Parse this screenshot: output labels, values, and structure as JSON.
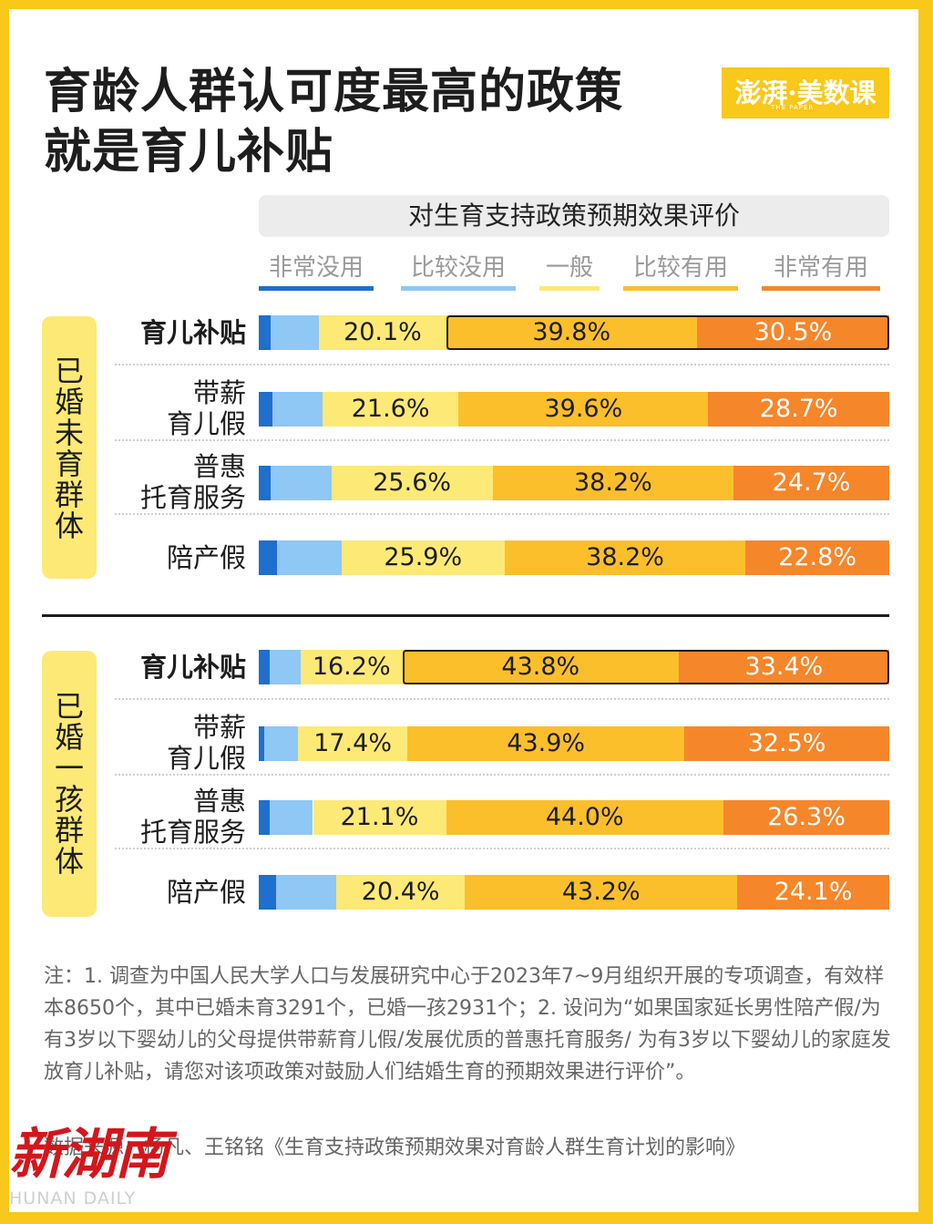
{
  "title_line1": "育龄人群认可度最高的政策",
  "title_line2": "就是育儿补贴",
  "brand": "澎湃·美数课",
  "brand_sub": "THE PAPER",
  "colors": {
    "very_useless": "#1f6fce",
    "somewhat_useless": "#8fc7f5",
    "neutral": "#fde976",
    "somewhat_useful": "#fbbf2c",
    "very_useful": "#f6862a"
  },
  "chart_data": {
    "type": "bar",
    "orientation": "horizontal-stacked-100",
    "title": "对生育支持政策预期效果评价",
    "legend": [
      "非常没用",
      "比较没用",
      "一般",
      "比较有用",
      "非常有用"
    ],
    "groups": [
      {
        "name": "已婚未育群体",
        "rows": [
          {
            "label": "育儿补贴",
            "values": [
              1.9,
              7.7,
              20.1,
              39.8,
              30.5
            ],
            "highlight": true
          },
          {
            "label": "带薪育儿假",
            "values": [
              2.1,
              8.0,
              21.6,
              39.6,
              28.7
            ],
            "highlight": false
          },
          {
            "label": "普惠托育服务",
            "values": [
              1.9,
              9.6,
              25.6,
              38.2,
              24.7
            ],
            "highlight": false
          },
          {
            "label": "陪产假",
            "values": [
              2.9,
              10.2,
              25.9,
              38.2,
              22.8
            ],
            "highlight": false
          }
        ]
      },
      {
        "name": "已婚一孩群体",
        "rows": [
          {
            "label": "育儿补贴",
            "values": [
              1.7,
              4.9,
              16.2,
              43.8,
              33.4
            ],
            "highlight": true
          },
          {
            "label": "带薪育儿假",
            "values": [
              0.8,
              5.4,
              17.4,
              43.9,
              32.5
            ],
            "highlight": false
          },
          {
            "label": "普惠托育服务",
            "values": [
              1.7,
              6.9,
              21.1,
              44.0,
              26.3
            ],
            "highlight": false
          },
          {
            "label": "陪产假",
            "values": [
              2.8,
              9.5,
              20.4,
              43.2,
              24.1
            ],
            "highlight": false
          }
        ]
      }
    ]
  },
  "notes": "注：1.  调查为中国人民大学人口与发展研究中心于2023年7~9月组织开展的专项调查，有效样本8650个，其中已婚未育3291个，已婚一孩2931个；2.  设问为“如果国家延长男性陪产假/为有3岁以下婴幼儿的父母提供带薪育儿假/发展优质的普惠托育服务/ 为有3岁以下婴幼儿的家庭发放育儿补贴，请您对该项政策对鼓励人们结婚生育的预期效果进行评价”。",
  "source": "数据来源：杨凡、王铭铭《生育支持政策预期效果对育龄人群生育计划的影响》",
  "watermark": "新湖南",
  "watermark_sub": "HUNAN DAILY"
}
